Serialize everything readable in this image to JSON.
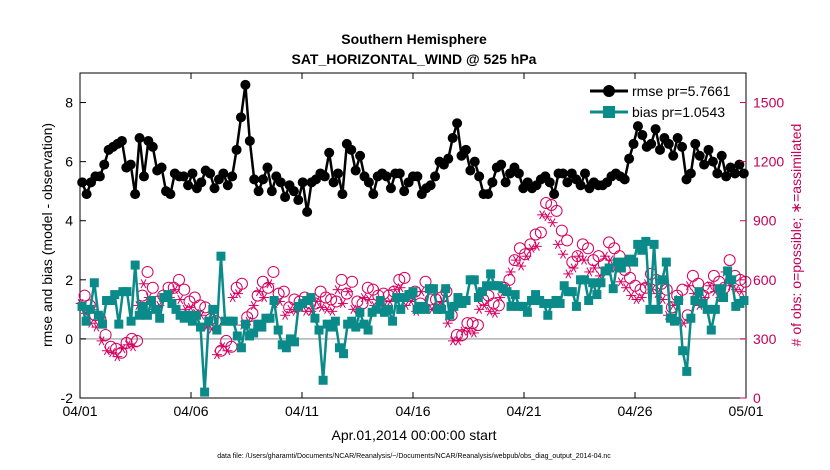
{
  "chart_data": {
    "type": "line",
    "title": "Southern Hemisphere",
    "subtitle": "SAT_HORIZONTAL_WIND @ 525 hPa",
    "xlabel": "Apr.01,2014 00:00:00 start",
    "ylabel": "rmse and bias (model - observation)",
    "y2label": "# of obs: o=possible; ∗=assimilated",
    "footnote": "data file: /Users/gharamti/Documents/NCAR/Reanalysis/~/Documents/NCAR/Reanalysis/webpub/obs_diag_output_2014-04.nc",
    "xlim": [
      0,
      30
    ],
    "x_ticks": [
      {
        "value": 0,
        "label": "04/01"
      },
      {
        "value": 5,
        "label": "04/06"
      },
      {
        "value": 10,
        "label": "04/11"
      },
      {
        "value": 15,
        "label": "04/16"
      },
      {
        "value": 20,
        "label": "04/21"
      },
      {
        "value": 25,
        "label": "04/26"
      },
      {
        "value": 30,
        "label": "05/01"
      }
    ],
    "ylim": [
      -2,
      9
    ],
    "y_ticks": [
      "-2",
      "0",
      "2",
      "4",
      "6",
      "8"
    ],
    "y2lim": [
      0,
      1650
    ],
    "y2_ticks": [
      "0",
      "300",
      "600",
      "900",
      "1200",
      "1500"
    ],
    "grid": false,
    "legend_position": "top-right",
    "colors": {
      "rmse": "#000000",
      "bias": "#0b8a8a",
      "counts": "#d6005f",
      "zero_line": "#b0b0b0"
    },
    "series": [
      {
        "name": "rmse pr=5.7661",
        "axis": "left",
        "marker": "circle",
        "values": [
          5.3,
          4.9,
          5.3,
          5.5,
          5.5,
          5.9,
          6.4,
          6.5,
          6.6,
          6.7,
          5.8,
          5.9,
          4.9,
          6.8,
          5.5,
          6.7,
          6.5,
          5.7,
          5.8,
          5.0,
          4.9,
          5.6,
          5.5,
          5.5,
          5.2,
          5.6,
          5.1,
          5.3,
          5.7,
          5.6,
          5.1,
          5.4,
          5.6,
          5.2,
          5.5,
          6.4,
          7.5,
          8.6,
          6.7,
          5.4,
          5.0,
          5.4,
          5.8,
          5.0,
          5.5,
          5.3,
          4.8,
          5.2,
          5.0,
          4.7,
          5.3,
          4.3,
          5.3,
          5.4,
          5.6,
          5.5,
          6.3,
          5.3,
          5.6,
          4.9,
          6.6,
          6.4,
          5.7,
          6.2,
          5.5,
          5.3,
          4.9,
          5.5,
          5.6,
          5.5,
          5.1,
          5.6,
          5.6,
          5.0,
          5.3,
          5.5,
          5.5,
          4.9,
          5.1,
          5.2,
          5.5,
          6.0,
          5.9,
          6.1,
          6.8,
          7.3,
          6.2,
          6.4,
          5.7,
          6.0,
          5.5,
          4.9,
          4.9,
          5.3,
          5.8,
          5.9,
          5.3,
          5.6,
          5.8,
          5.6,
          5.1,
          5.3,
          5.1,
          5.2,
          5.4,
          5.5,
          5.3,
          4.9,
          5.6,
          5.6,
          5.3,
          5.6,
          5.4,
          5.2,
          5.6,
          5.1,
          5.3,
          5.2,
          5.2,
          5.3,
          5.5,
          5.6,
          5.5,
          5.4,
          6.1,
          6.6,
          7.2,
          6.9,
          6.5,
          6.6,
          7.1,
          6.4,
          6.8,
          6.6,
          6.2,
          6.8,
          6.5,
          5.4,
          5.6,
          6.6,
          6.2,
          5.9,
          6.4,
          6.0,
          5.6,
          6.2,
          5.5,
          5.8,
          5.6,
          5.9,
          5.6
        ]
      },
      {
        "name": "bias pr=1.0543",
        "axis": "left",
        "marker": "square",
        "values": [
          1.1,
          0.6,
          1.0,
          1.9,
          0.8,
          0.5,
          1.3,
          1.3,
          1.5,
          0.5,
          1.6,
          1.6,
          0.6,
          2.5,
          0.8,
          1.1,
          0.8,
          1.3,
          1.0,
          0.7,
          1.4,
          1.5,
          1.2,
          1.0,
          0.8,
          0.7,
          0.8,
          0.6,
          0.8,
          0.4,
          -1.8,
          0.6,
          1.0,
          0.3,
          2.8,
          0.6,
          0.6,
          0.6,
          0.1,
          -0.3,
          0.5,
          0.1,
          0.2,
          0.5,
          0.4,
          0.7,
          0.7,
          1.3,
          0.3,
          -0.2,
          -0.3,
          0.0,
          -0.1,
          1.1,
          1.2,
          1.3,
          1.4,
          0.7,
          0.3,
          -1.4,
          0.5,
          0.4,
          0.6,
          -0.3,
          -0.5,
          0.5,
          0.6,
          0.4,
          0.9,
          0.5,
          0.3,
          0.9,
          1.0,
          1.3,
          0.9,
          1.0,
          0.6,
          1.4,
          1.0,
          1.4,
          1.5,
          1.6,
          1.0,
          1.1,
          1.0,
          1.7,
          1.7,
          1.0,
          1.0,
          1.7,
          0.8,
          1.1,
          1.4,
          1.2,
          1.3,
          2.0,
          2.0,
          1.4,
          1.6,
          1.8,
          2.2,
          1.8,
          1.8,
          1.7,
          1.6,
          1.1,
          1.5,
          1.1,
          1.1,
          0.9,
          1.3,
          1.5,
          1.3,
          1.2,
          0.8,
          1.2,
          1.3,
          1.2,
          1.8,
          1.6,
          1.6,
          1.1,
          2.0,
          2.0,
          1.3,
          1.9,
          1.5,
          1.9,
          2.3,
          2.4,
          1.7,
          2.6,
          2.4,
          2.6,
          2.7,
          2.6,
          3.2,
          3.0,
          3.3,
          1.0,
          3.2,
          1.0,
          2.0,
          2.6,
          0.7,
          0.6,
          1.3,
          -0.4,
          -1.1,
          0.7,
          1.3,
          1.6,
          1.2,
          1.0,
          0.3,
          1.0,
          1.7,
          1.4,
          2.3,
          2.0,
          1.1,
          1.2,
          1.3
        ]
      },
      {
        "name": "obs possible",
        "axis": "right",
        "marker": "o",
        "values": [
          520,
          470,
          420,
          400,
          320,
          260,
          250,
          230,
          280,
          300,
          290,
          520,
          640,
          560,
          490,
          520,
          560,
          560,
          600,
          550,
          490,
          510,
          470,
          460,
          400,
          390,
          240,
          290,
          260,
          560,
          580,
          410,
          430,
          520,
          590,
          560,
          640,
          530,
          540,
          460,
          500,
          490,
          510,
          480,
          480,
          540,
          510,
          500,
          490,
          600,
          530,
          590,
          490,
          480,
          560,
          550,
          520,
          530,
          520,
          540,
          600,
          610,
          520,
          540,
          480,
          590,
          500,
          500,
          510,
          540,
          420,
          320,
          320,
          380,
          380,
          370,
          500,
          520,
          480,
          470,
          560,
          600,
          700,
          760,
          730,
          780,
          830,
          840,
          990,
          980,
          950,
          850,
          800,
          690,
          720,
          780,
          760,
          700,
          720,
          680,
          790,
          760,
          720,
          650,
          610,
          570,
          550,
          560,
          630,
          600,
          580,
          550,
          460,
          520,
          550,
          420,
          620,
          580,
          520,
          560,
          620,
          590,
          560,
          700,
          620,
          600,
          590
        ]
      },
      {
        "name": "obs assimilated",
        "axis": "right",
        "marker": "asterisk",
        "values": [
          480,
          430,
          380,
          360,
          290,
          240,
          230,
          210,
          250,
          270,
          260,
          470,
          580,
          510,
          450,
          470,
          510,
          510,
          550,
          500,
          450,
          460,
          430,
          420,
          360,
          350,
          220,
          260,
          240,
          510,
          530,
          370,
          390,
          470,
          540,
          510,
          580,
          480,
          490,
          420,
          450,
          440,
          460,
          440,
          440,
          490,
          460,
          450,
          440,
          550,
          480,
          540,
          450,
          440,
          510,
          500,
          470,
          480,
          470,
          490,
          550,
          560,
          470,
          490,
          440,
          540,
          450,
          450,
          460,
          490,
          380,
          290,
          290,
          340,
          340,
          330,
          450,
          470,
          440,
          430,
          510,
          550,
          640,
          700,
          670,
          720,
          760,
          770,
          930,
          920,
          890,
          780,
          730,
          630,
          660,
          720,
          700,
          640,
          660,
          620,
          720,
          700,
          660,
          590,
          560,
          520,
          500,
          510,
          580,
          550,
          530,
          500,
          420,
          470,
          500,
          380,
          570,
          530,
          470,
          510,
          570,
          540,
          510,
          640,
          570,
          550,
          540
        ]
      }
    ]
  }
}
